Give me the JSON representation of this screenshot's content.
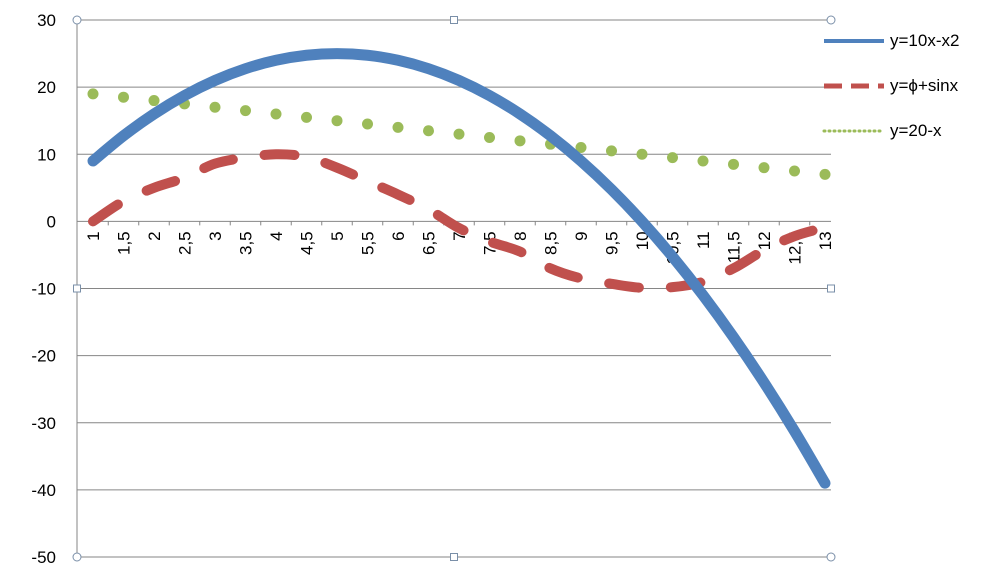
{
  "chart_data": {
    "type": "line",
    "x": [
      "1",
      "1,5",
      "2",
      "2,5",
      "3",
      "3,5",
      "4",
      "4,5",
      "5",
      "5,5",
      "6",
      "6,5",
      "7",
      "7,5",
      "8",
      "8,5",
      "9",
      "9,5",
      "10",
      "10,5",
      "11",
      "11,5",
      "12",
      "12,5",
      "13"
    ],
    "x_values": [
      1,
      1.5,
      2,
      2.5,
      3,
      3.5,
      4,
      4.5,
      5,
      5.5,
      6,
      6.5,
      7,
      7.5,
      8,
      8.5,
      9,
      9.5,
      10,
      10.5,
      11,
      11.5,
      12,
      12.5,
      13
    ],
    "series": [
      {
        "name": "y=10x-x2",
        "color": "#4F81BD",
        "style": "solid",
        "values": [
          9,
          12.75,
          16,
          18.75,
          21,
          22.75,
          24,
          24.75,
          25,
          24.75,
          24,
          22.75,
          21,
          18.75,
          16,
          12.75,
          9,
          4.75,
          0,
          -5.25,
          -11,
          -17.25,
          -24,
          -31.25,
          -39
        ]
      },
      {
        "name": "y=ϕ+sinx",
        "color": "#C0504D",
        "style": "dashed",
        "values": [
          0,
          3,
          5,
          6.5,
          8.6,
          9.5,
          10,
          9.6,
          8,
          6,
          4,
          1.8,
          -1,
          -3,
          -4.5,
          -7,
          -8.5,
          -9.3,
          -9.9,
          -9.8,
          -9,
          -7,
          -4.3,
          -2.2,
          -0.9
        ]
      },
      {
        "name": "y=20-x",
        "color": "#9BBB59",
        "style": "dotted",
        "values": [
          19,
          18.5,
          18,
          17.5,
          17,
          16.5,
          16,
          15.5,
          15,
          14.5,
          14,
          13.5,
          13,
          12.5,
          12,
          11.5,
          11,
          10.5,
          10,
          9.5,
          9,
          8.5,
          8,
          7.5,
          7
        ]
      }
    ],
    "yticks": [
      30,
      20,
      10,
      0,
      -10,
      -20,
      -30,
      -40,
      -50
    ],
    "ylim": [
      -50,
      30
    ],
    "grid": true,
    "legend_position": "right",
    "title": "",
    "xlabel": "",
    "ylabel": ""
  }
}
